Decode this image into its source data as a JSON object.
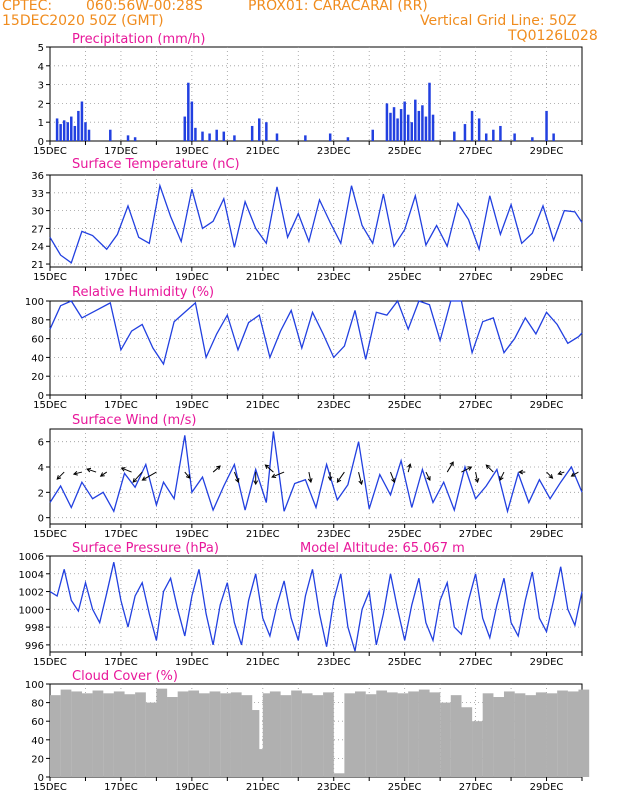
{
  "header": {
    "source": "CPTEC:",
    "coords": "060:56W-00:28S",
    "station": "PROX01: CARACARAI (RR)",
    "date": "15DEC2020 50Z (GMT)",
    "grid_note": "Vertical Grid Line: 50Z",
    "code": "TQ0126L028"
  },
  "colors": {
    "header": "#f08c1e",
    "title": "#e8179a",
    "line": "#2240e0",
    "bar": "#2240e0",
    "cloud": "#b0b0b0",
    "grid": "#9a9a9a"
  },
  "date_labels": [
    "15DEC",
    "17DEC",
    "19DEC",
    "21DEC",
    "23DEC",
    "25DEC",
    "27DEC",
    "29DEC"
  ],
  "chart_data": [
    {
      "type": "bar",
      "title": "Precipitation (mm/h)",
      "ylim": [
        0,
        5
      ],
      "yticks": [
        0,
        1,
        2,
        3,
        4,
        5
      ],
      "x_range_days": [
        15,
        30
      ],
      "series": [
        {
          "x": [
            15.2,
            15.3,
            15.4,
            15.5,
            15.6,
            15.7,
            15.8,
            15.9,
            16.0,
            16.1,
            16.7,
            17.2,
            17.4,
            18.8,
            18.9,
            19.0,
            19.1,
            19.3,
            19.5,
            19.7,
            19.9,
            20.2,
            20.7,
            20.9,
            21.1,
            21.4,
            22.2,
            22.9,
            23.4,
            24.1,
            24.5,
            24.6,
            24.7,
            24.8,
            24.9,
            25.0,
            25.1,
            25.2,
            25.3,
            25.4,
            25.5,
            25.6,
            25.7,
            25.8,
            26.4,
            26.7,
            26.9,
            27.1,
            27.3,
            27.5,
            27.7,
            28.1,
            28.6,
            29.0,
            29.2
          ],
          "values": [
            1.2,
            0.9,
            1.1,
            1.0,
            1.3,
            0.8,
            1.6,
            2.1,
            1.0,
            0.6,
            0.6,
            0.3,
            0.2,
            1.3,
            3.1,
            2.1,
            0.7,
            0.5,
            0.4,
            0.6,
            0.5,
            0.3,
            0.8,
            1.2,
            1.0,
            0.4,
            0.3,
            0.4,
            0.2,
            0.6,
            2.0,
            1.5,
            1.8,
            1.2,
            1.7,
            2.1,
            1.4,
            1.0,
            2.2,
            1.6,
            1.9,
            1.3,
            3.1,
            1.4,
            0.5,
            0.9,
            1.6,
            1.2,
            0.4,
            0.6,
            0.8,
            0.4,
            0.2,
            1.6,
            0.4
          ]
        }
      ]
    },
    {
      "type": "line",
      "title": "Surface Temperature (nC)",
      "ylim": [
        20.5,
        36
      ],
      "yticks": [
        21,
        24,
        27,
        30,
        33,
        36
      ],
      "series": [
        {
          "x": [
            15.0,
            15.3,
            15.6,
            15.9,
            16.2,
            16.6,
            16.9,
            17.2,
            17.5,
            17.8,
            18.1,
            18.4,
            18.7,
            19.0,
            19.3,
            19.6,
            19.9,
            20.2,
            20.5,
            20.8,
            21.1,
            21.4,
            21.7,
            22.0,
            22.3,
            22.6,
            22.9,
            23.2,
            23.5,
            23.8,
            24.1,
            24.4,
            24.7,
            25.0,
            25.3,
            25.6,
            25.9,
            26.2,
            26.5,
            26.8,
            27.1,
            27.4,
            27.7,
            28.0,
            28.3,
            28.6,
            28.9,
            29.2,
            29.5,
            29.8,
            30.0
          ],
          "values": [
            25.5,
            22.5,
            21.2,
            26.5,
            25.8,
            23.5,
            26.0,
            30.8,
            25.5,
            24.5,
            34.2,
            29.0,
            24.8,
            33.6,
            27.0,
            28.2,
            32.0,
            23.8,
            31.5,
            27.0,
            24.5,
            34.0,
            25.5,
            29.5,
            24.8,
            31.8,
            28.0,
            24.5,
            34.2,
            27.5,
            24.5,
            32.8,
            24.0,
            26.8,
            32.5,
            24.2,
            27.5,
            24.0,
            31.2,
            28.5,
            23.5,
            32.5,
            26.0,
            31.0,
            24.5,
            26.2,
            30.8,
            25.0,
            30.0,
            29.8,
            28.0
          ]
        }
      ]
    },
    {
      "type": "line",
      "title": "Relative Humidity (%)",
      "ylim": [
        0,
        100
      ],
      "yticks": [
        0,
        20,
        40,
        60,
        80,
        100
      ],
      "series": [
        {
          "x": [
            15.0,
            15.3,
            15.6,
            15.9,
            16.3,
            16.7,
            17.0,
            17.3,
            17.6,
            17.9,
            18.2,
            18.5,
            18.8,
            19.1,
            19.4,
            19.7,
            20.0,
            20.3,
            20.6,
            20.9,
            21.2,
            21.5,
            21.8,
            22.1,
            22.4,
            22.7,
            23.0,
            23.3,
            23.6,
            23.9,
            24.2,
            24.5,
            24.8,
            25.1,
            25.4,
            25.7,
            26.0,
            26.3,
            26.6,
            26.9,
            27.2,
            27.5,
            27.8,
            28.1,
            28.4,
            28.7,
            29.0,
            29.3,
            29.6,
            29.9,
            30.0
          ],
          "values": [
            70,
            95,
            100,
            82,
            90,
            98,
            48,
            68,
            75,
            50,
            33,
            78,
            88,
            98,
            40,
            65,
            85,
            48,
            77,
            85,
            40,
            68,
            90,
            50,
            88,
            65,
            40,
            52,
            90,
            38,
            88,
            85,
            100,
            70,
            100,
            96,
            58,
            100,
            100,
            45,
            78,
            82,
            45,
            60,
            82,
            65,
            88,
            75,
            55,
            62,
            66
          ]
        }
      ]
    },
    {
      "type": "line",
      "title": "Surface Wind (m/s)",
      "ylim": [
        -0.5,
        7
      ],
      "yticks": [
        0,
        2,
        4,
        6
      ],
      "series": [
        {
          "x": [
            15.0,
            15.3,
            15.6,
            15.9,
            16.2,
            16.5,
            16.8,
            17.1,
            17.4,
            17.7,
            18.0,
            18.2,
            18.5,
            18.8,
            19.0,
            19.3,
            19.6,
            19.9,
            20.2,
            20.5,
            20.8,
            21.1,
            21.3,
            21.6,
            21.9,
            22.2,
            22.5,
            22.8,
            23.1,
            23.4,
            23.7,
            24.0,
            24.3,
            24.6,
            24.9,
            25.2,
            25.5,
            25.8,
            26.1,
            26.4,
            26.7,
            27.0,
            27.3,
            27.6,
            27.9,
            28.2,
            28.5,
            28.8,
            29.1,
            29.4,
            29.7,
            30.0
          ],
          "values": [
            1.2,
            2.5,
            0.8,
            2.8,
            1.5,
            2.0,
            0.5,
            3.5,
            2.4,
            4.2,
            1.0,
            2.8,
            1.5,
            6.5,
            2.0,
            3.2,
            0.6,
            2.5,
            4.2,
            0.6,
            3.8,
            1.2,
            6.8,
            0.5,
            2.7,
            3.0,
            0.8,
            4.2,
            1.4,
            2.6,
            6.0,
            0.7,
            3.4,
            1.8,
            4.5,
            0.8,
            3.8,
            1.2,
            2.8,
            0.6,
            4.0,
            1.5,
            2.5,
            3.8,
            0.5,
            3.5,
            1.2,
            3.0,
            1.5,
            2.8,
            4.0,
            2.0
          ]
        }
      ],
      "arrows": [
        {
          "x": 15.4,
          "dx": -7,
          "dy": 7
        },
        {
          "x": 15.9,
          "dx": -8,
          "dy": 2
        },
        {
          "x": 16.3,
          "dx": -9,
          "dy": -3
        },
        {
          "x": 16.6,
          "dx": -6,
          "dy": 4
        },
        {
          "x": 17.3,
          "dx": -10,
          "dy": -4
        },
        {
          "x": 17.6,
          "dx": -9,
          "dy": 10
        },
        {
          "x": 18.0,
          "dx": -14,
          "dy": 8
        },
        {
          "x": 18.8,
          "dx": 5,
          "dy": 6
        },
        {
          "x": 19.6,
          "dx": 7,
          "dy": -6
        },
        {
          "x": 20.2,
          "dx": 4,
          "dy": 10
        },
        {
          "x": 20.8,
          "dx": 0,
          "dy": 12
        },
        {
          "x": 21.3,
          "dx": -8,
          "dy": -7
        },
        {
          "x": 21.6,
          "dx": -12,
          "dy": 5
        },
        {
          "x": 22.3,
          "dx": 2,
          "dy": 10
        },
        {
          "x": 22.9,
          "dx": 0,
          "dy": 8
        },
        {
          "x": 23.3,
          "dx": -7,
          "dy": 10
        },
        {
          "x": 23.7,
          "dx": 3,
          "dy": 12
        },
        {
          "x": 24.6,
          "dx": 4,
          "dy": 10
        },
        {
          "x": 25.1,
          "dx": 2,
          "dy": -8
        },
        {
          "x": 25.6,
          "dx": 4,
          "dy": 8
        },
        {
          "x": 26.2,
          "dx": 6,
          "dy": -10
        },
        {
          "x": 26.6,
          "dx": 10,
          "dy": -5
        },
        {
          "x": 27.0,
          "dx": 2,
          "dy": 10
        },
        {
          "x": 27.5,
          "dx": -7,
          "dy": -7
        },
        {
          "x": 27.8,
          "dx": -4,
          "dy": 8
        },
        {
          "x": 28.4,
          "dx": -6,
          "dy": 0
        },
        {
          "x": 29.0,
          "dx": 6,
          "dy": 6
        },
        {
          "x": 29.5,
          "dx": -6,
          "dy": 2
        },
        {
          "x": 29.9,
          "dx": -7,
          "dy": 4
        }
      ]
    },
    {
      "type": "line",
      "title": "Surface Pressure (hPa)",
      "subtitle": "Model Altitude: 65.067 m",
      "ylim": [
        995.2,
        1006
      ],
      "yticks": [
        996,
        998,
        1000,
        1002,
        1004,
        1006
      ],
      "series": [
        {
          "x": [
            15.0,
            15.2,
            15.4,
            15.6,
            15.8,
            16.0,
            16.2,
            16.4,
            16.6,
            16.8,
            17.0,
            17.2,
            17.4,
            17.6,
            17.8,
            18.0,
            18.2,
            18.4,
            18.6,
            18.8,
            19.0,
            19.2,
            19.4,
            19.6,
            19.8,
            20.0,
            20.2,
            20.4,
            20.6,
            20.8,
            21.0,
            21.2,
            21.4,
            21.6,
            21.8,
            22.0,
            22.2,
            22.4,
            22.6,
            22.8,
            23.0,
            23.2,
            23.4,
            23.6,
            23.8,
            24.0,
            24.2,
            24.4,
            24.6,
            24.8,
            25.0,
            25.2,
            25.4,
            25.6,
            25.8,
            26.0,
            26.2,
            26.4,
            26.6,
            26.8,
            27.0,
            27.2,
            27.4,
            27.6,
            27.8,
            28.0,
            28.2,
            28.4,
            28.6,
            28.8,
            29.0,
            29.2,
            29.4,
            29.6,
            29.8,
            30.0
          ],
          "values": [
            1002.0,
            1001.5,
            1004.5,
            1001.0,
            999.8,
            1003.0,
            1000.0,
            998.5,
            1001.8,
            1005.3,
            1001.0,
            998.0,
            1001.5,
            1003.0,
            999.5,
            996.5,
            1002.0,
            1003.5,
            1000.0,
            997.0,
            1001.5,
            1004.5,
            999.5,
            996.0,
            1000.5,
            1003.0,
            998.5,
            996.0,
            1001.0,
            1004.0,
            999.0,
            997.0,
            1000.5,
            1003.2,
            999.0,
            996.5,
            1001.5,
            1004.5,
            999.5,
            995.8,
            1001.0,
            1004.0,
            998.0,
            995.3,
            1000.0,
            1002.0,
            996.0,
            999.5,
            1004.0,
            1000.0,
            996.5,
            1000.5,
            1003.5,
            998.5,
            996.5,
            1001.0,
            1003.0,
            998.0,
            997.2,
            1001.0,
            1004.0,
            999.0,
            996.8,
            1000.5,
            1003.5,
            998.5,
            997.0,
            1001.0,
            1004.2,
            999.0,
            997.5,
            1001.0,
            1004.8,
            1000.0,
            998.2,
            1002.0
          ]
        }
      ]
    },
    {
      "type": "bar",
      "title": "Cloud Cover (%)",
      "ylim": [
        0,
        100
      ],
      "yticks": [
        0,
        20,
        40,
        60,
        80,
        100
      ],
      "series": [
        {
          "x": [
            15.0,
            15.3,
            15.6,
            15.9,
            16.2,
            16.5,
            16.8,
            17.1,
            17.4,
            17.7,
            18.0,
            18.3,
            18.6,
            18.9,
            19.2,
            19.5,
            19.8,
            20.1,
            20.4,
            20.6,
            20.8,
            21.0,
            21.2,
            21.5,
            21.8,
            22.1,
            22.4,
            22.7,
            23.0,
            23.3,
            23.6,
            23.9,
            24.2,
            24.5,
            24.8,
            25.1,
            25.4,
            25.7,
            26.0,
            26.3,
            26.6,
            26.9,
            27.2,
            27.5,
            27.8,
            28.1,
            28.4,
            28.7,
            29.0,
            29.3,
            29.6,
            29.9
          ],
          "values": [
            88,
            94,
            92,
            90,
            93,
            90,
            92,
            89,
            91,
            80,
            95,
            86,
            92,
            93,
            90,
            92,
            90,
            91,
            88,
            72,
            30,
            90,
            92,
            88,
            93,
            90,
            88,
            91,
            4,
            90,
            92,
            89,
            93,
            91,
            90,
            92,
            94,
            91,
            80,
            88,
            75,
            60,
            90,
            86,
            92,
            90,
            88,
            91,
            90,
            93,
            92,
            94
          ]
        }
      ]
    }
  ]
}
